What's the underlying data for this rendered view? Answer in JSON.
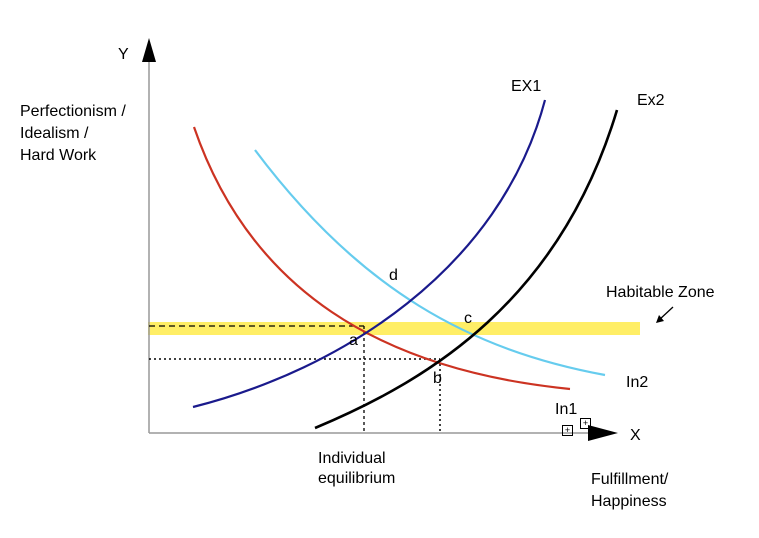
{
  "axes": {
    "y_symbol": "Y",
    "x_symbol": "X",
    "y_label_lines": [
      "Perfectionism /",
      "Idealism /",
      "Hard Work"
    ],
    "x_label_lines": [
      "Fulfillment/",
      "Happiness"
    ]
  },
  "curves": {
    "ex1": "EX1",
    "ex2": "Ex2",
    "in1": "In1",
    "in2": "In2"
  },
  "points": {
    "a": "a",
    "b": "b",
    "c": "c",
    "d": "d"
  },
  "zone": {
    "label": "Habitable Zone"
  },
  "equilibrium_lines": [
    "Individual",
    "equilibrium"
  ],
  "colors": {
    "ex1": "#1a1a8c",
    "ex2": "#000000",
    "in1": "#cc3322",
    "in2": "#66ccee",
    "zone": "#ffee66"
  },
  "icons": [
    "plus-box-icon",
    "plus-box-icon"
  ]
}
